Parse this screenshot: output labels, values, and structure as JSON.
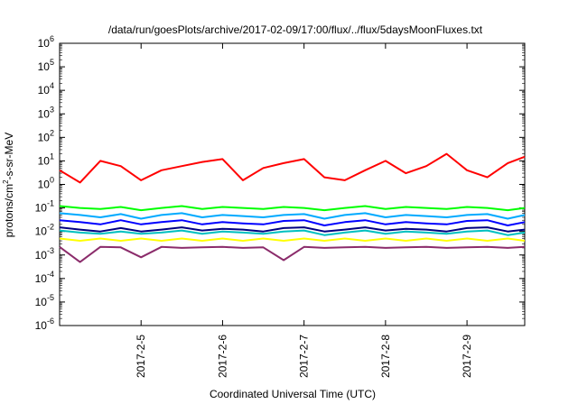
{
  "chart_data": {
    "type": "line",
    "title": "/data/run/goesPlots/archive/2017-02-09/17:00/flux/../flux/5daysMoonFluxes.txt",
    "xlabel": "Coordinated Universal Time (UTC)",
    "ylabel_parts": [
      "protons/cm",
      "2",
      "-s-sr-MeV"
    ],
    "y_scale": "log",
    "ylim": [
      1e-06,
      1000000.0
    ],
    "y_ticks": [
      {
        "base": "10",
        "exp": "-6",
        "value": 1e-06
      },
      {
        "base": "10",
        "exp": "-5",
        "value": 1e-05
      },
      {
        "base": "10",
        "exp": "-4",
        "value": 0.0001
      },
      {
        "base": "10",
        "exp": "-3",
        "value": 0.001
      },
      {
        "base": "10",
        "exp": "-2",
        "value": 0.01
      },
      {
        "base": "10",
        "exp": "-1",
        "value": 0.1
      },
      {
        "base": "10",
        "exp": "0",
        "value": 1.0
      },
      {
        "base": "10",
        "exp": "1",
        "value": 10.0
      },
      {
        "base": "10",
        "exp": "2",
        "value": 100.0
      },
      {
        "base": "10",
        "exp": "3",
        "value": 1000.0
      },
      {
        "base": "10",
        "exp": "4",
        "value": 10000.0
      },
      {
        "base": "10",
        "exp": "5",
        "value": 100000.0
      },
      {
        "base": "10",
        "exp": "6",
        "value": 1000000.0
      }
    ],
    "xlim": [
      "2017-02-04 00:00",
      "2017-02-09 17:00"
    ],
    "x_ticks": [
      {
        "label": "2017-2-5",
        "value": "2017-02-05"
      },
      {
        "label": "2017-2-6",
        "value": "2017-02-06"
      },
      {
        "label": "2017-2-7",
        "value": "2017-02-07"
      },
      {
        "label": "2017-2-8",
        "value": "2017-02-08"
      },
      {
        "label": "2017-2-9",
        "value": "2017-02-09"
      }
    ],
    "x": [
      "2017-02-04 00:00",
      "2017-02-04 06:00",
      "2017-02-04 12:00",
      "2017-02-04 18:00",
      "2017-02-05 00:00",
      "2017-02-05 06:00",
      "2017-02-05 12:00",
      "2017-02-05 18:00",
      "2017-02-06 00:00",
      "2017-02-06 06:00",
      "2017-02-06 12:00",
      "2017-02-06 18:00",
      "2017-02-07 00:00",
      "2017-02-07 06:00",
      "2017-02-07 12:00",
      "2017-02-07 18:00",
      "2017-02-08 00:00",
      "2017-02-08 06:00",
      "2017-02-08 12:00",
      "2017-02-08 18:00",
      "2017-02-09 00:00",
      "2017-02-09 06:00",
      "2017-02-09 12:00",
      "2017-02-09 17:00"
    ],
    "series": [
      {
        "color": "#ff0000",
        "values": [
          4,
          1.2,
          10,
          6,
          1.5,
          4,
          6,
          9,
          12,
          1.5,
          5,
          8,
          12,
          2,
          1.5,
          4,
          10,
          3,
          6,
          20,
          4,
          2,
          8,
          15
        ]
      },
      {
        "color": "#00ff00",
        "values": [
          0.12,
          0.1,
          0.09,
          0.11,
          0.08,
          0.1,
          0.12,
          0.09,
          0.11,
          0.1,
          0.09,
          0.11,
          0.1,
          0.08,
          0.1,
          0.12,
          0.09,
          0.11,
          0.1,
          0.09,
          0.11,
          0.1,
          0.08,
          0.1
        ]
      },
      {
        "color": "#00aaff",
        "values": [
          0.06,
          0.05,
          0.04,
          0.055,
          0.035,
          0.05,
          0.06,
          0.04,
          0.05,
          0.045,
          0.04,
          0.05,
          0.055,
          0.035,
          0.05,
          0.06,
          0.04,
          0.05,
          0.045,
          0.04,
          0.05,
          0.055,
          0.035,
          0.05
        ]
      },
      {
        "color": "#0000ff",
        "values": [
          0.03,
          0.025,
          0.02,
          0.03,
          0.02,
          0.025,
          0.03,
          0.02,
          0.025,
          0.022,
          0.02,
          0.028,
          0.03,
          0.018,
          0.025,
          0.03,
          0.02,
          0.025,
          0.022,
          0.02,
          0.028,
          0.03,
          0.018,
          0.025
        ]
      },
      {
        "color": "#000080",
        "values": [
          0.015,
          0.012,
          0.01,
          0.014,
          0.01,
          0.012,
          0.015,
          0.011,
          0.013,
          0.012,
          0.01,
          0.014,
          0.015,
          0.01,
          0.012,
          0.015,
          0.011,
          0.013,
          0.012,
          0.01,
          0.014,
          0.015,
          0.01,
          0.012
        ]
      },
      {
        "color": "#00c0c0",
        "values": [
          0.011,
          0.009,
          0.008,
          0.01,
          0.008,
          0.009,
          0.011,
          0.008,
          0.01,
          0.009,
          0.008,
          0.01,
          0.011,
          0.007,
          0.009,
          0.011,
          0.008,
          0.01,
          0.009,
          0.008,
          0.01,
          0.011,
          0.007,
          0.009
        ]
      },
      {
        "color": "#ffff00",
        "values": [
          0.005,
          0.004,
          0.005,
          0.004,
          0.005,
          0.004,
          0.005,
          0.004,
          0.005,
          0.004,
          0.005,
          0.004,
          0.005,
          0.004,
          0.005,
          0.004,
          0.005,
          0.004,
          0.005,
          0.004,
          0.005,
          0.004,
          0.005,
          0.004
        ]
      },
      {
        "color": "#8b2c6b",
        "values": [
          0.0022,
          0.0005,
          0.0022,
          0.0021,
          0.0008,
          0.0022,
          0.002,
          0.0021,
          0.0022,
          0.002,
          0.0021,
          0.0006,
          0.0022,
          0.002,
          0.0021,
          0.0022,
          0.002,
          0.0021,
          0.0022,
          0.002,
          0.0021,
          0.0022,
          0.002,
          0.0022
        ]
      }
    ]
  }
}
